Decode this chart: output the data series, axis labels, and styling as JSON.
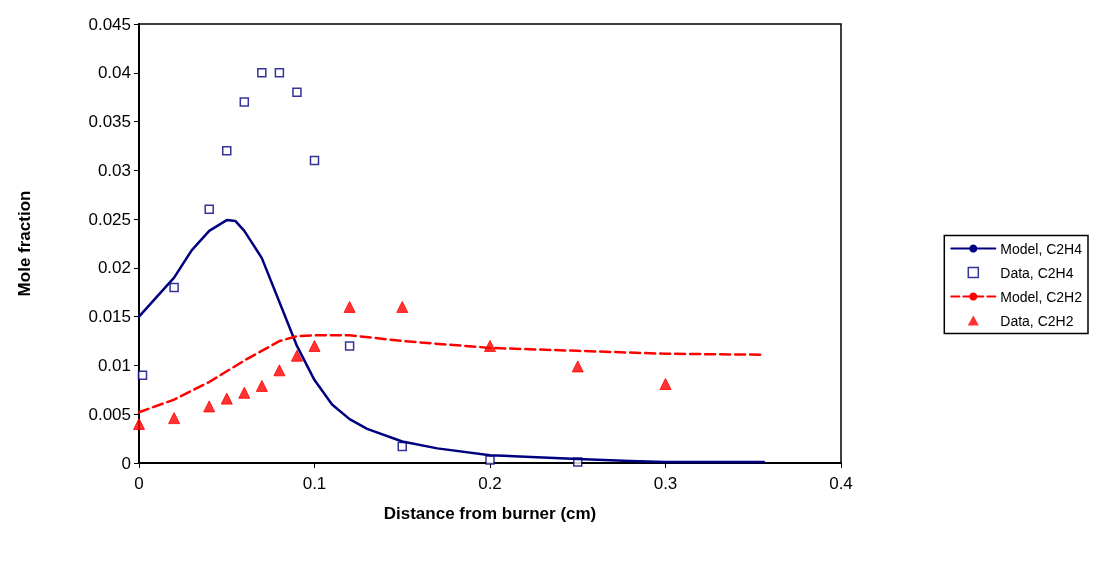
{
  "chart_data": {
    "type": "line",
    "xlabel": "Distance from burner (cm)",
    "ylabel": "Mole fraction",
    "xlim": [
      0,
      0.4
    ],
    "xticks": [
      0,
      0.1,
      0.2,
      0.3,
      0.4
    ],
    "ylim": [
      0,
      0.045
    ],
    "yticks": [
      0,
      0.005,
      0.01,
      0.015,
      0.02,
      0.025,
      0.03,
      0.035,
      0.04,
      0.045
    ],
    "grid": false,
    "legend": "right",
    "series": [
      {
        "name": "Model, C2H4",
        "type": "line",
        "color": "#000080",
        "line_style": "solid",
        "marker": "none",
        "x": [
          0,
          0.005,
          0.01,
          0.02,
          0.03,
          0.04,
          0.05,
          0.055,
          0.06,
          0.07,
          0.08,
          0.09,
          0.1,
          0.11,
          0.12,
          0.13,
          0.15,
          0.17,
          0.2,
          0.25,
          0.28,
          0.3,
          0.356
        ],
        "values": [
          0.015,
          0.016,
          0.017,
          0.019,
          0.0218,
          0.0238,
          0.0249,
          0.0248,
          0.0238,
          0.021,
          0.0165,
          0.012,
          0.0085,
          0.006,
          0.0045,
          0.0035,
          0.0022,
          0.0015,
          0.0008,
          0.0004,
          0.0002,
          0.0001,
          0.0001
        ]
      },
      {
        "name": "Data, C2H4",
        "type": "scatter",
        "color": "#000080",
        "marker": "square",
        "x": [
          0.002,
          0.02,
          0.04,
          0.05,
          0.06,
          0.07,
          0.08,
          0.09,
          0.1,
          0.12,
          0.15,
          0.2,
          0.25
        ],
        "values": [
          0.009,
          0.018,
          0.026,
          0.032,
          0.037,
          0.04,
          0.04,
          0.038,
          0.031,
          0.012,
          0.0017,
          0.0003,
          0.0001
        ]
      },
      {
        "name": "Model, C2H2",
        "type": "line",
        "color": "#ff0000",
        "line_style": "dashed",
        "marker": "none",
        "x": [
          0,
          0.02,
          0.04,
          0.06,
          0.08,
          0.09,
          0.1,
          0.12,
          0.15,
          0.2,
          0.25,
          0.3,
          0.356
        ],
        "values": [
          0.0052,
          0.0065,
          0.0083,
          0.0105,
          0.0125,
          0.013,
          0.0131,
          0.0131,
          0.0125,
          0.0118,
          0.0115,
          0.0112,
          0.0111
        ]
      },
      {
        "name": "Data, C2H2",
        "type": "scatter",
        "color": "#ff0000",
        "marker": "triangle",
        "x": [
          0,
          0.02,
          0.04,
          0.05,
          0.06,
          0.07,
          0.08,
          0.09,
          0.1,
          0.12,
          0.15,
          0.2,
          0.25,
          0.3
        ],
        "values": [
          0.004,
          0.0046,
          0.0058,
          0.0066,
          0.0072,
          0.0079,
          0.0095,
          0.011,
          0.012,
          0.016,
          0.016,
          0.012,
          0.0099,
          0.0081
        ]
      }
    ]
  }
}
